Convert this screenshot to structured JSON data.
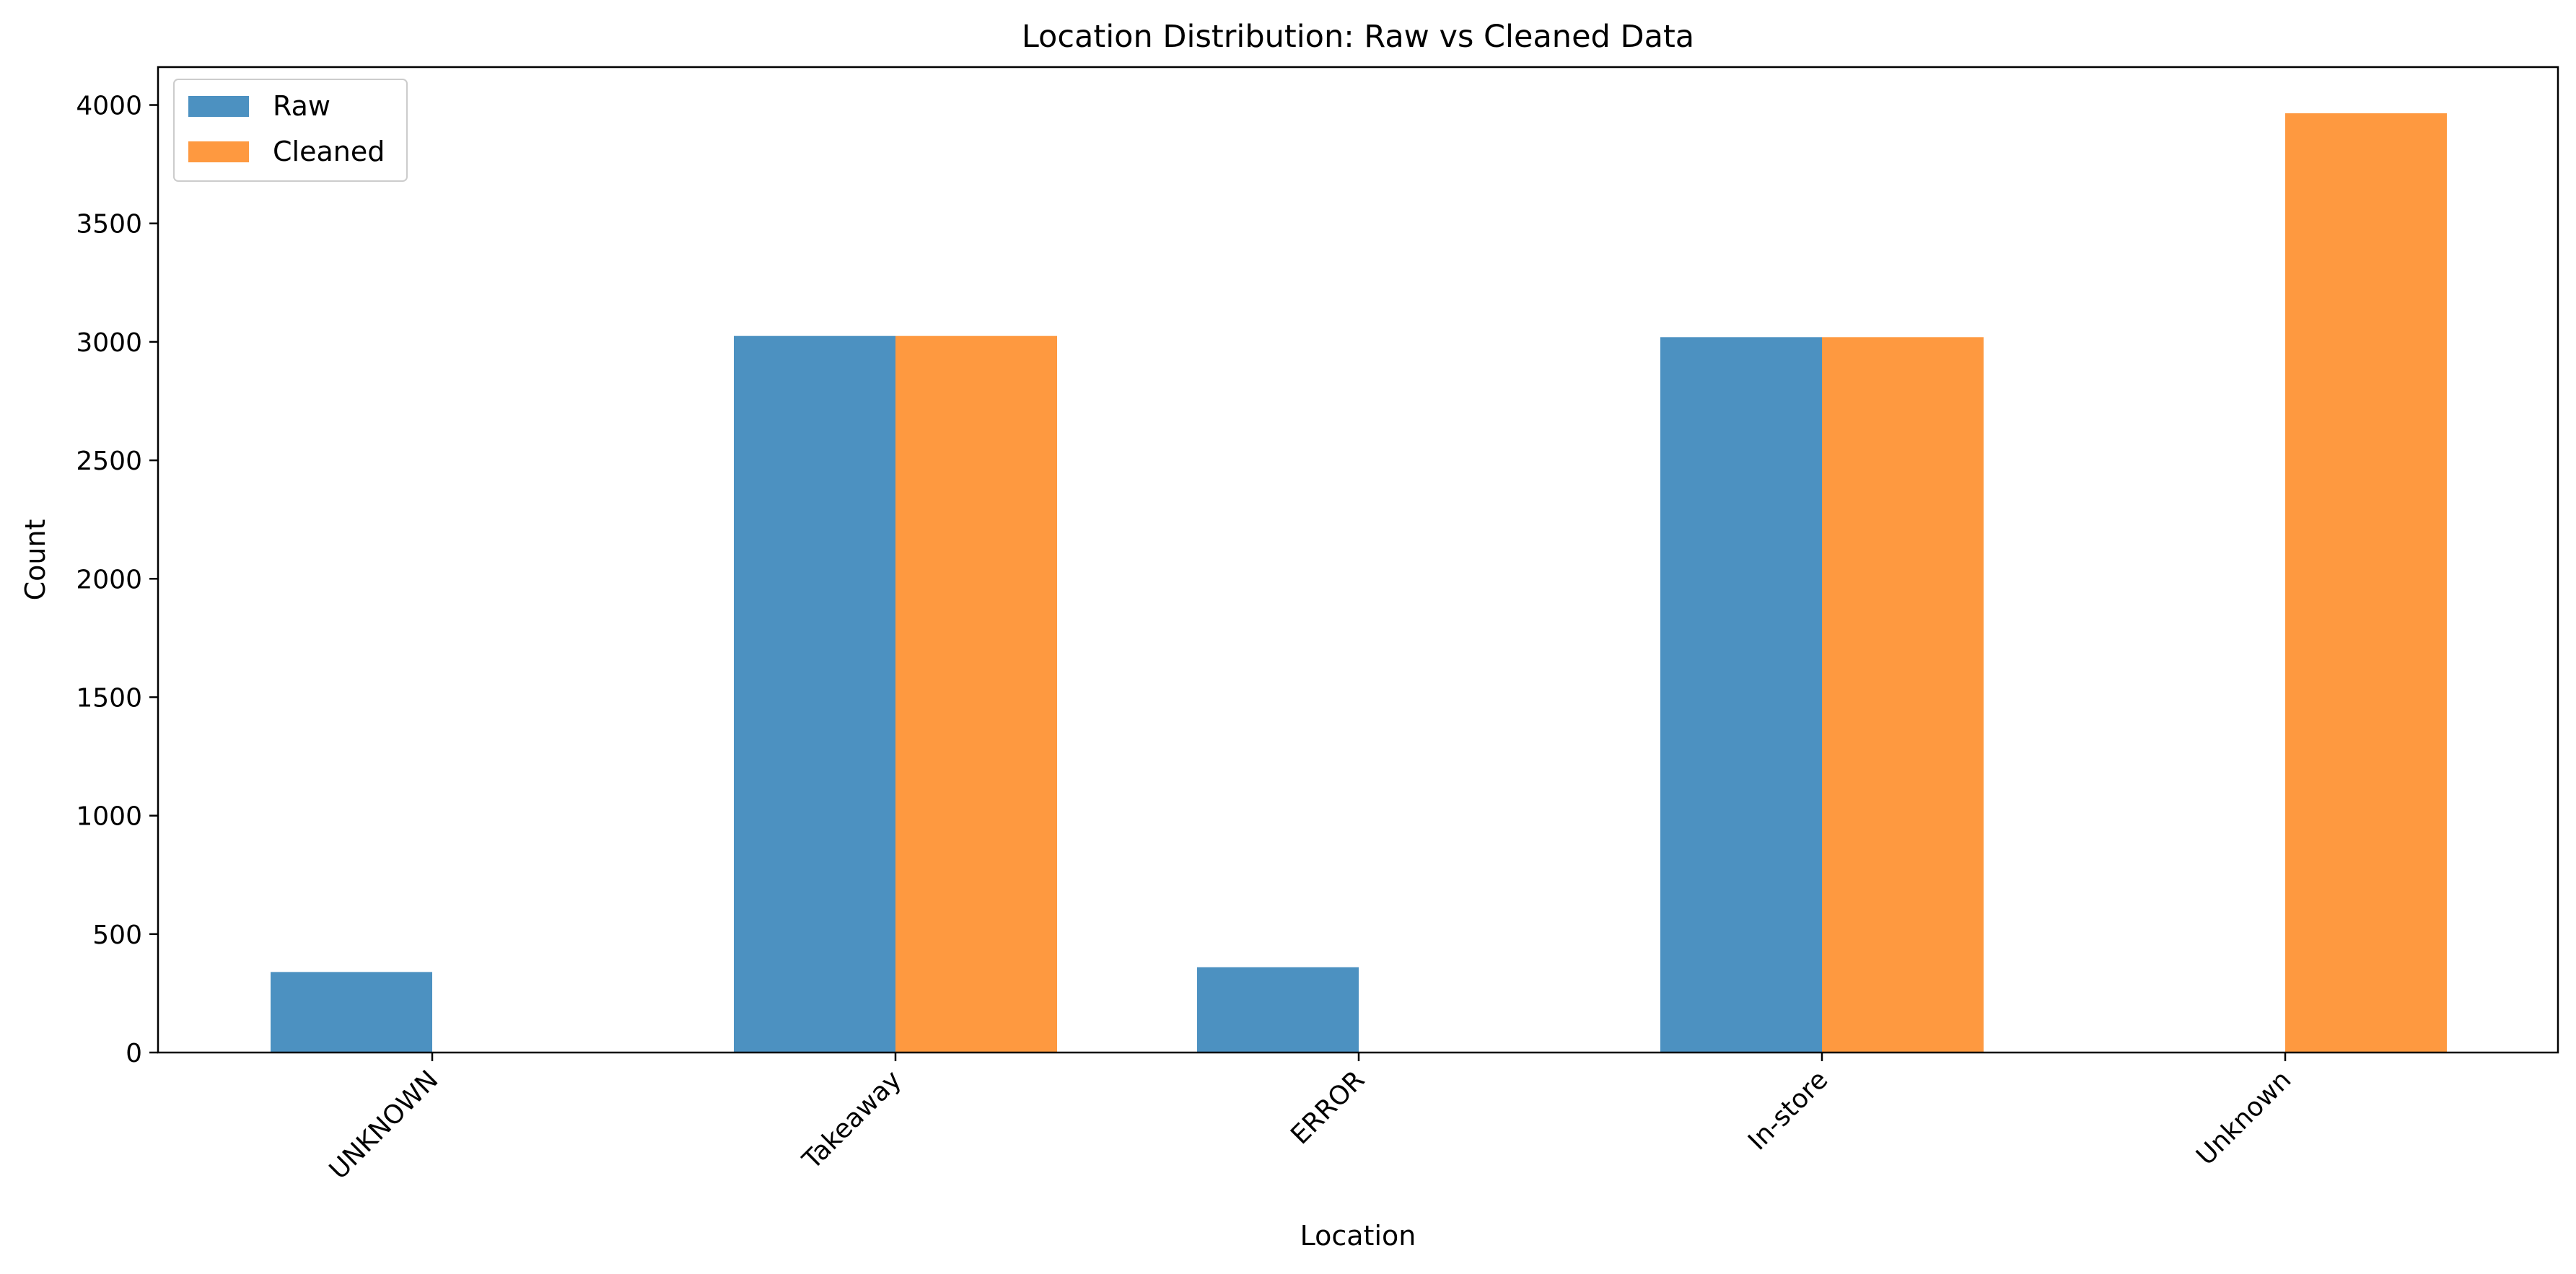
{
  "chart_data": {
    "type": "bar",
    "title": "Location Distribution: Raw vs Cleaned Data",
    "xlabel": "Location",
    "ylabel": "Count",
    "categories": [
      "UNKNOWN",
      "Takeaway",
      "ERROR",
      "In-store",
      "Unknown"
    ],
    "series": [
      {
        "name": "Raw",
        "color": "#4c91c1",
        "values": [
          340,
          3025,
          360,
          3020,
          0
        ]
      },
      {
        "name": "Cleaned",
        "color": "#fe9940",
        "values": [
          0,
          3025,
          0,
          3020,
          3965
        ]
      }
    ],
    "ylim": [
      0,
      4160
    ],
    "yticks": [
      0,
      500,
      1000,
      1500,
      2000,
      2500,
      3000,
      3500,
      4000
    ],
    "grid": false,
    "legend": "top-left"
  }
}
